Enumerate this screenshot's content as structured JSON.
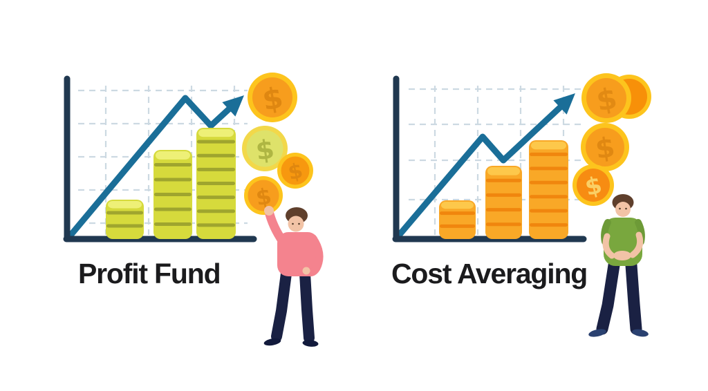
{
  "illustration": {
    "background": "#ffffff",
    "coin_symbol": "$",
    "colors": {
      "axis": "#203850",
      "trend_line": "#1a6e98",
      "grid": "#ccd9e2",
      "title_text": "#1b1b1d",
      "gold_rim": "#fdc41d",
      "orange_coin_face": "#f79d1d"
    },
    "panels": [
      {
        "title": "Profit Fund",
        "coin_stack_counts": [
          3,
          6,
          8
        ],
        "stack_colors": {
          "body": "#d6da3c",
          "band": "#9fa52e",
          "top": "#eef077"
        },
        "floating_coin_count": 4,
        "trend": "rising-with-dip-and-arrow",
        "person": {
          "shirt_color": "#f4838e",
          "pants_color": "#1a2143",
          "pose": "arm-raised-holding-coin"
        }
      },
      {
        "title": "Cost Averaging",
        "coin_stack_counts": [
          3,
          5,
          7
        ],
        "stack_colors": {
          "body": "#f9a827",
          "band": "#f0860e",
          "top": "#fdc84b"
        },
        "floating_coin_count": 4,
        "trend": "rising-with-dip-and-arrow",
        "person": {
          "shirt_color": "#79a73e",
          "pants_color": "#1a2143",
          "pose": "hands-clasped"
        }
      }
    ]
  }
}
